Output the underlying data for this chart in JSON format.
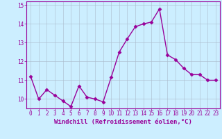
{
  "x": [
    0,
    1,
    2,
    3,
    4,
    5,
    6,
    7,
    8,
    9,
    10,
    11,
    12,
    13,
    14,
    15,
    16,
    17,
    18,
    19,
    20,
    21,
    22,
    23
  ],
  "y": [
    11.2,
    10.0,
    10.5,
    10.2,
    9.9,
    9.6,
    10.7,
    10.1,
    10.0,
    9.85,
    11.15,
    12.5,
    13.2,
    13.85,
    14.0,
    14.1,
    14.8,
    12.35,
    12.1,
    11.65,
    11.3,
    11.3,
    11.0,
    11.0
  ],
  "ylim": [
    9.5,
    15.2
  ],
  "yticks": [
    10,
    11,
    12,
    13,
    14,
    15
  ],
  "xticks": [
    0,
    1,
    2,
    3,
    4,
    5,
    6,
    7,
    8,
    9,
    10,
    11,
    12,
    13,
    14,
    15,
    16,
    17,
    18,
    19,
    20,
    21,
    22,
    23
  ],
  "line_color": "#990099",
  "marker": "D",
  "marker_size": 2.5,
  "bg_color": "#cceeff",
  "grid_color": "#aabbcc",
  "xlabel": "Windchill (Refroidissement éolien,°C)",
  "xlabel_fontsize": 6.5,
  "tick_fontsize": 5.5,
  "line_width": 1.0
}
